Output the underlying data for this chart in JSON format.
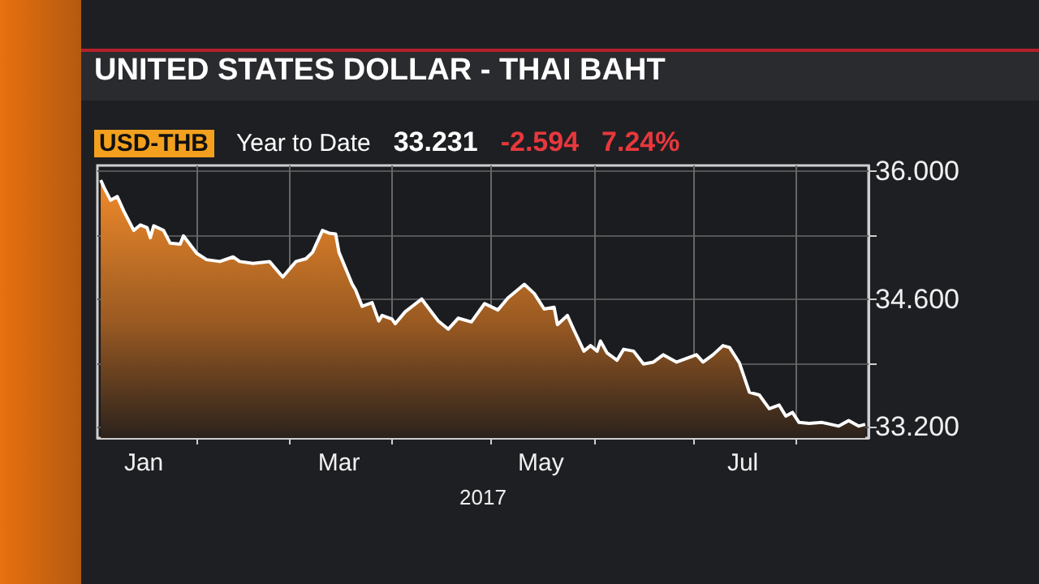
{
  "chart_data": {
    "type": "area",
    "title": "UNITED STATES DOLLAR - THAI BAHT",
    "xlabel": "2017",
    "annotations": [
      "USD-THB",
      "Year to Date",
      "33.231",
      "-2.594",
      "7.24%"
    ],
    "x": [
      "2017-01-03",
      "2017-01-04",
      "2017-01-06",
      "2017-01-08",
      "2017-01-10",
      "2017-01-13",
      "2017-01-15",
      "2017-01-17",
      "2017-01-18",
      "2017-01-19",
      "2017-01-22",
      "2017-01-24",
      "2017-01-27",
      "2017-01-28",
      "2017-02-01",
      "2017-02-04",
      "2017-02-08",
      "2017-02-12",
      "2017-02-14",
      "2017-02-18",
      "2017-02-23",
      "2017-02-27",
      "2017-03-03",
      "2017-03-06",
      "2017-03-08",
      "2017-03-11",
      "2017-03-13",
      "2017-03-15",
      "2017-03-16",
      "2017-03-20",
      "2017-03-21",
      "2017-03-23",
      "2017-03-26",
      "2017-03-28",
      "2017-03-29",
      "2017-04-01",
      "2017-04-02",
      "2017-04-05",
      "2017-04-10",
      "2017-04-11",
      "2017-04-15",
      "2017-04-18",
      "2017-04-21",
      "2017-04-25",
      "2017-04-29",
      "2017-05-03",
      "2017-05-06",
      "2017-05-11",
      "2017-05-14",
      "2017-05-17",
      "2017-05-20",
      "2017-05-21",
      "2017-05-24",
      "2017-05-26",
      "2017-05-29",
      "2017-05-31",
      "2017-06-02",
      "2017-06-03",
      "2017-06-05",
      "2017-06-08",
      "2017-06-10",
      "2017-06-13",
      "2017-06-16",
      "2017-06-19",
      "2017-06-22",
      "2017-06-26",
      "2017-06-29",
      "2017-07-02",
      "2017-07-04",
      "2017-07-07",
      "2017-07-10",
      "2017-07-12",
      "2017-07-15",
      "2017-07-18",
      "2017-07-21",
      "2017-07-24",
      "2017-07-27",
      "2017-07-29",
      "2017-07-31",
      "2017-08-02",
      "2017-08-05",
      "2017-08-09",
      "2017-08-14",
      "2017-08-17",
      "2017-08-20",
      "2017-08-22"
    ],
    "series": [
      {
        "color": "#ffffff",
        "values": [
          35.9,
          35.82,
          35.68,
          35.72,
          35.56,
          35.35,
          35.41,
          35.38,
          35.27,
          35.4,
          35.35,
          35.21,
          35.2,
          35.29,
          35.1,
          35.03,
          35.01,
          35.06,
          35.01,
          34.99,
          35.01,
          34.84,
          35.01,
          35.04,
          35.11,
          35.35,
          35.32,
          35.31,
          35.11,
          34.76,
          34.7,
          34.52,
          34.56,
          34.36,
          34.42,
          34.38,
          34.33,
          34.46,
          34.6,
          34.55,
          34.36,
          34.27,
          34.39,
          34.35,
          34.55,
          34.48,
          34.61,
          34.76,
          34.66,
          34.49,
          34.51,
          34.32,
          34.42,
          34.26,
          34.03,
          34.09,
          34.03,
          34.14,
          34.01,
          33.93,
          34.05,
          34.03,
          33.89,
          33.91,
          33.99,
          33.91,
          33.95,
          33.99,
          33.91,
          33.99,
          34.09,
          34.07,
          33.9,
          33.58,
          33.55,
          33.4,
          33.44,
          33.32,
          33.36,
          33.25,
          33.24,
          33.25,
          33.21,
          33.27,
          33.21,
          33.23
        ]
      }
    ],
    "xlim": [
      "2017-01-02",
      "2017-08-23"
    ],
    "xticks": [
      {
        "value": "2017-01-16",
        "label": "Jan"
      },
      {
        "value": "2017-02-01",
        "label": null
      },
      {
        "value": "2017-03-01",
        "label": null
      },
      {
        "value": "2017-03-16",
        "label": "Mar"
      },
      {
        "value": "2017-04-01",
        "label": null
      },
      {
        "value": "2017-05-01",
        "label": null
      },
      {
        "value": "2017-05-16",
        "label": "May"
      },
      {
        "value": "2017-06-01",
        "label": null
      },
      {
        "value": "2017-07-01",
        "label": null
      },
      {
        "value": "2017-07-16",
        "label": "Jul"
      },
      {
        "value": "2017-08-01",
        "label": null
      }
    ],
    "ylim": [
      33.08,
      36.06
    ],
    "yticks": [
      {
        "value": 33.2,
        "label": "33.200"
      },
      {
        "value": 33.9,
        "label": null
      },
      {
        "value": 34.6,
        "label": "34.600"
      },
      {
        "value": 35.3,
        "label": null
      },
      {
        "value": 36,
        "label": "36.000"
      }
    ],
    "grid": true,
    "marker": "none",
    "line_style": "solid"
  }
}
